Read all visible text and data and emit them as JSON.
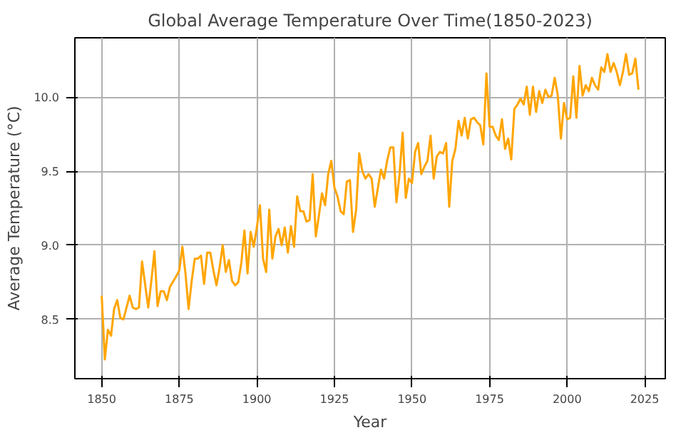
{
  "chart_data": {
    "type": "line",
    "title": "Global Average Temperature Over Time(1850-2023)",
    "xlabel": "Year",
    "ylabel": "Average Temperature (°C)",
    "xlim": [
      1841.35,
      2031.65
    ],
    "xticks": [
      1850,
      1875,
      1900,
      1925,
      1950,
      1975,
      2000,
      2025
    ],
    "ylim": [
      8.1,
      10.4
    ],
    "yticks": [
      {
        "value": 8.5,
        "label": "8.5"
      },
      {
        "value": 9.0,
        "label": "9.0"
      },
      {
        "value": 9.5,
        "label": "9.5"
      },
      {
        "value": 10.0,
        "label": "10.0"
      }
    ],
    "grid": true,
    "line_style": "solid",
    "series": [
      {
        "color": "#ffa500",
        "x": [
          1850,
          1851,
          1852,
          1853,
          1854,
          1855,
          1856,
          1857,
          1859,
          1860,
          1861,
          1862,
          1863,
          1865,
          1866,
          1867,
          1868,
          1869,
          1870,
          1871,
          1872,
          1874,
          1875,
          1876,
          1877,
          1878,
          1879,
          1880,
          1881,
          1882,
          1883,
          1884,
          1885,
          1886,
          1887,
          1888,
          1889,
          1890,
          1891,
          1892,
          1893,
          1894,
          1895,
          1896,
          1897,
          1898,
          1899,
          1900,
          1901,
          1902,
          1903,
          1904,
          1905,
          1906,
          1907,
          1908,
          1909,
          1910,
          1911,
          1912,
          1913,
          1914,
          1915,
          1916,
          1917,
          1918,
          1919,
          1920,
          1921,
          1922,
          1923,
          1924,
          1925,
          1926,
          1927,
          1928,
          1929,
          1930,
          1931,
          1932,
          1933,
          1934,
          1935,
          1936,
          1937,
          1938,
          1940,
          1941,
          1942,
          1943,
          1944,
          1945,
          1946,
          1947,
          1948,
          1949,
          1950,
          1951,
          1952,
          1953,
          1954,
          1955,
          1956,
          1957,
          1958,
          1959,
          1960,
          1961,
          1962,
          1963,
          1964,
          1965,
          1966,
          1967,
          1968,
          1969,
          1970,
          1971,
          1972,
          1973,
          1974,
          1975,
          1976,
          1977,
          1978,
          1979,
          1980,
          1981,
          1982,
          1983,
          1984,
          1985,
          1986,
          1987,
          1988,
          1989,
          1990,
          1991,
          1992,
          1993,
          1994,
          1995,
          1996,
          1997,
          1998,
          1999,
          2000,
          2001,
          2002,
          2003,
          2004,
          2005,
          2006,
          2007,
          2008,
          2009,
          2010,
          2011,
          2012,
          2013,
          2014,
          2015,
          2016,
          2017,
          2018,
          2019,
          2020,
          2021,
          2022,
          2023
        ],
        "values": [
          8.66,
          8.23,
          8.43,
          8.39,
          8.57,
          8.63,
          8.51,
          8.5,
          8.66,
          8.58,
          8.57,
          8.58,
          8.89,
          8.58,
          8.76,
          8.96,
          8.59,
          8.69,
          8.69,
          8.63,
          8.72,
          8.79,
          8.83,
          8.99,
          8.81,
          8.57,
          8.76,
          8.91,
          8.91,
          8.93,
          8.74,
          8.95,
          8.95,
          8.83,
          8.73,
          8.85,
          9.0,
          8.82,
          8.9,
          8.76,
          8.73,
          8.75,
          8.88,
          9.1,
          8.81,
          9.09,
          8.99,
          9.12,
          9.27,
          8.91,
          8.82,
          9.24,
          8.91,
          9.06,
          9.11,
          9.0,
          9.12,
          8.95,
          9.13,
          8.99,
          9.33,
          9.23,
          9.23,
          9.16,
          9.17,
          9.48,
          9.06,
          9.2,
          9.35,
          9.27,
          9.48,
          9.57,
          9.39,
          9.33,
          9.23,
          9.21,
          9.43,
          9.44,
          9.09,
          9.24,
          9.62,
          9.5,
          9.45,
          9.48,
          9.45,
          9.26,
          9.51,
          9.45,
          9.57,
          9.66,
          9.66,
          9.29,
          9.48,
          9.76,
          9.32,
          9.45,
          9.42,
          9.63,
          9.69,
          9.48,
          9.53,
          9.57,
          9.74,
          9.45,
          9.6,
          9.63,
          9.62,
          9.69,
          9.26,
          9.57,
          9.65,
          9.84,
          9.74,
          9.86,
          9.72,
          9.85,
          9.86,
          9.83,
          9.81,
          9.68,
          10.16,
          9.8,
          9.8,
          9.74,
          9.71,
          9.85,
          9.65,
          9.72,
          9.58,
          9.92,
          9.95,
          9.99,
          9.95,
          10.07,
          9.88,
          10.07,
          9.9,
          10.04,
          9.96,
          10.05,
          10.0,
          10.01,
          10.13,
          10.01,
          9.72,
          9.96,
          9.85,
          9.86,
          10.14,
          9.86,
          10.21,
          10.01,
          10.08,
          10.04,
          10.13,
          10.08,
          10.05,
          10.2,
          10.17,
          10.29,
          10.17,
          10.23,
          10.17,
          10.08,
          10.17,
          10.29,
          10.15,
          10.16,
          10.26,
          10.05
        ]
      }
    ]
  }
}
